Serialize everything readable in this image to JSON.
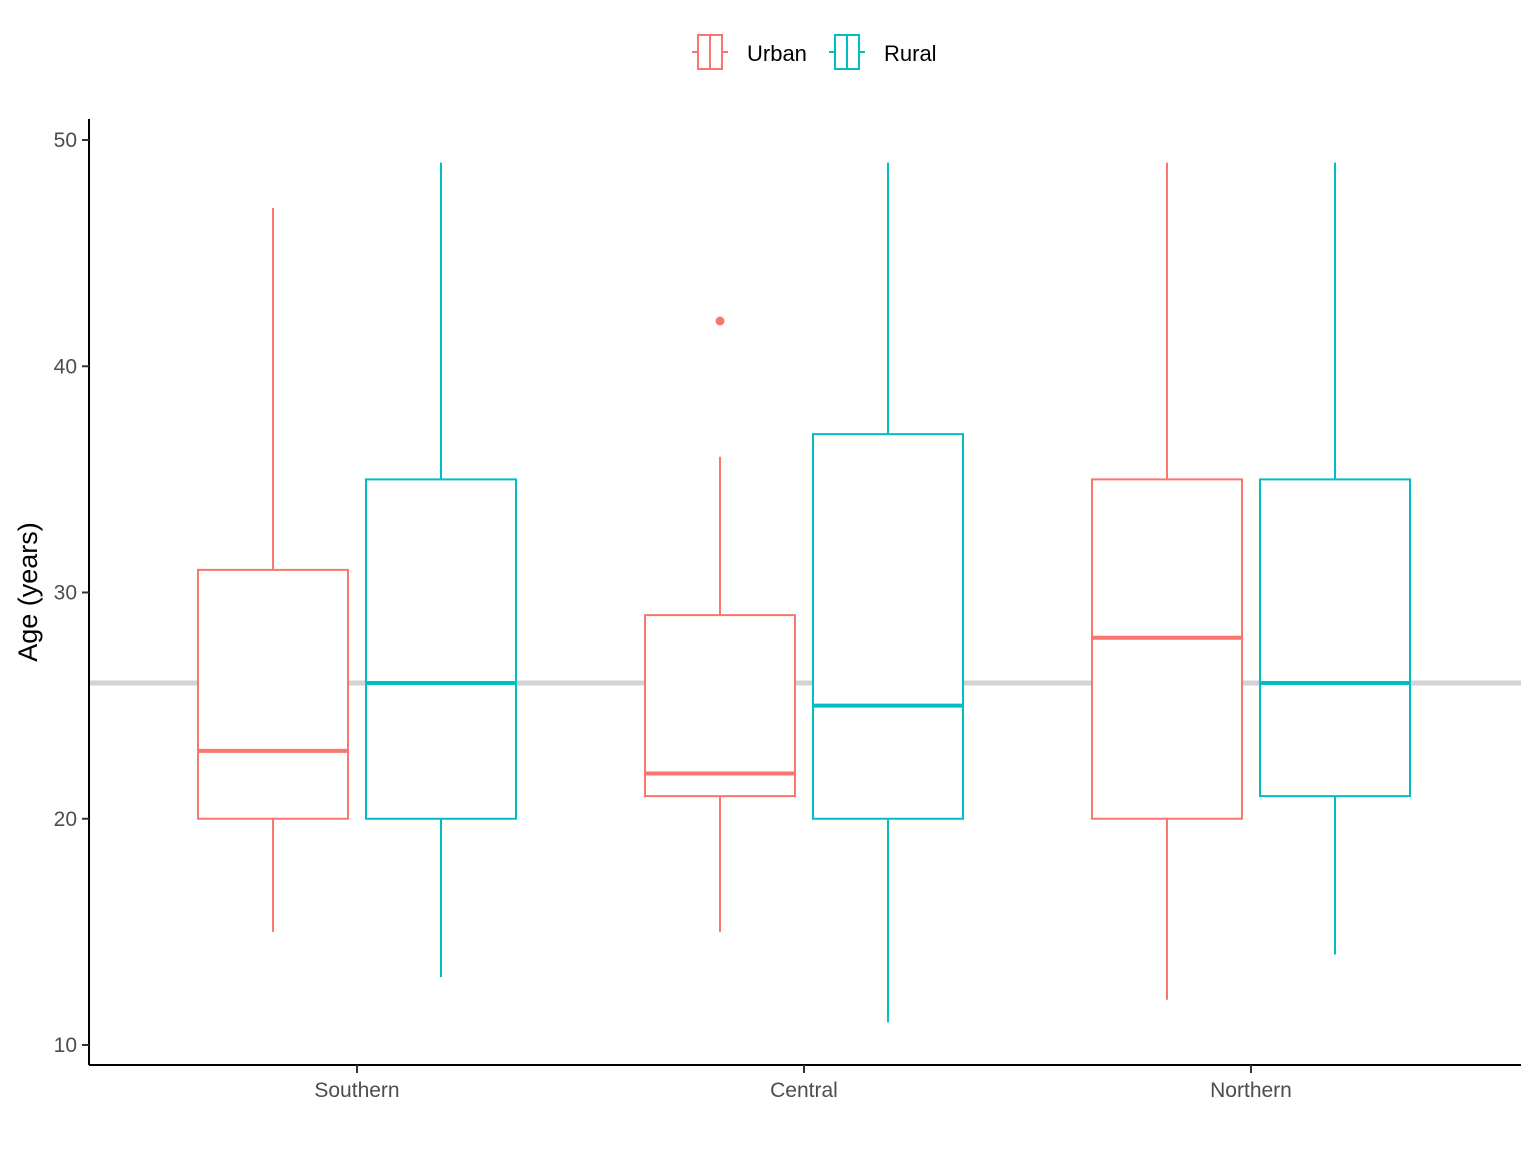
{
  "chart_data": {
    "type": "boxplot",
    "title": "",
    "xlabel": "",
    "ylabel": "Age (years)",
    "ylim": [
      9,
      50.5
    ],
    "yticks": [
      10,
      20,
      30,
      40,
      50
    ],
    "grid": false,
    "legend_position": "top",
    "reference_line": {
      "y": 26,
      "color": "#d3d3d3"
    },
    "categories": [
      "Southern",
      "Central",
      "Northern"
    ],
    "series": [
      {
        "name": "Urban",
        "color": "#F8766D",
        "boxes": [
          {
            "category": "Southern",
            "whisker_low": 15,
            "q1": 20,
            "median": 23,
            "q3": 31,
            "whisker_high": 47,
            "outliers": []
          },
          {
            "category": "Central",
            "whisker_low": 15,
            "q1": 21,
            "median": 22,
            "q3": 29,
            "whisker_high": 36,
            "outliers": [
              42
            ]
          },
          {
            "category": "Northern",
            "whisker_low": 12,
            "q1": 20,
            "median": 28,
            "q3": 35,
            "whisker_high": 49,
            "outliers": []
          }
        ]
      },
      {
        "name": "Rural",
        "color": "#00BFC4",
        "boxes": [
          {
            "category": "Southern",
            "whisker_low": 13,
            "q1": 20,
            "median": 26,
            "q3": 35,
            "whisker_high": 49,
            "outliers": []
          },
          {
            "category": "Central",
            "whisker_low": 11,
            "q1": 20,
            "median": 25,
            "q3": 37,
            "whisker_high": 49,
            "outliers": []
          },
          {
            "category": "Northern",
            "whisker_low": 14,
            "q1": 21,
            "median": 26,
            "q3": 35,
            "whisker_high": 49,
            "outliers": []
          }
        ]
      }
    ]
  }
}
